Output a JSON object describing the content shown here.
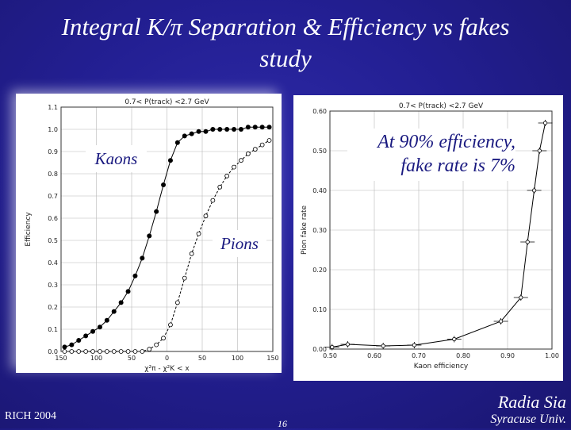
{
  "title": {
    "line1": "Integral  K/π  Separation & Efficiency vs fakes",
    "line2": "study"
  },
  "callouts": {
    "kaons": "Kaons",
    "pions": "Pions",
    "fake_line1": "At 90% efficiency,",
    "fake_line2": "fake rate is 7%"
  },
  "footer": {
    "conference": "RICH 2004",
    "slide_number": "16",
    "author": "Radia Sia",
    "affiliation": "Syracuse Univ."
  },
  "chart_data": [
    {
      "type": "scatter",
      "title": "0.7< P(track) <2.7 GeV",
      "xlabel": "χ²π - χ²K < x",
      "ylabel": "Efficiency",
      "xlim": [
        -150,
        150
      ],
      "ylim": [
        0,
        1.1
      ],
      "x_ticks": [
        -150,
        -100,
        -50,
        0,
        50,
        100,
        150
      ],
      "x_tick_labels": [
        "150",
        "100",
        "50",
        "0",
        "50",
        "100",
        "150"
      ],
      "y_ticks": [
        0,
        0.1,
        0.2,
        0.3,
        0.4,
        0.5,
        0.6,
        0.7,
        0.8,
        0.9,
        1.0,
        1.1
      ],
      "y_tick_labels": [
        "0.0",
        "0.1",
        "0.2",
        "0.3",
        "0.4",
        "0.5",
        "0.6",
        "0.7",
        "0.8",
        "0.9",
        "1.0",
        "1.1"
      ],
      "grid": true,
      "series": [
        {
          "name": "Kaons",
          "marker": "filled-circle",
          "line": "solid",
          "x": [
            -145,
            -135,
            -125,
            -115,
            -105,
            -95,
            -85,
            -75,
            -65,
            -55,
            -45,
            -35,
            -25,
            -15,
            -5,
            5,
            15,
            25,
            35,
            45,
            55,
            65,
            75,
            85,
            95,
            105,
            115,
            125,
            135,
            145
          ],
          "y": [
            0.02,
            0.03,
            0.05,
            0.07,
            0.09,
            0.11,
            0.14,
            0.18,
            0.22,
            0.27,
            0.34,
            0.42,
            0.52,
            0.63,
            0.75,
            0.86,
            0.94,
            0.97,
            0.98,
            0.99,
            0.99,
            1.0,
            1.0,
            1.0,
            1.0,
            1.0,
            1.01,
            1.01,
            1.01,
            1.01
          ]
        },
        {
          "name": "Pions",
          "marker": "open-circle",
          "line": "dashed",
          "x": [
            -145,
            -135,
            -125,
            -115,
            -105,
            -95,
            -85,
            -75,
            -65,
            -55,
            -45,
            -35,
            -25,
            -15,
            -5,
            5,
            15,
            25,
            35,
            45,
            55,
            65,
            75,
            85,
            95,
            105,
            115,
            125,
            135,
            145
          ],
          "y": [
            0.0,
            0.0,
            0.0,
            0.0,
            0.0,
            0.0,
            0.0,
            0.0,
            0.0,
            0.0,
            0.0,
            0.0,
            0.01,
            0.03,
            0.06,
            0.12,
            0.22,
            0.33,
            0.44,
            0.53,
            0.61,
            0.68,
            0.74,
            0.79,
            0.83,
            0.86,
            0.89,
            0.91,
            0.93,
            0.95
          ]
        }
      ]
    },
    {
      "type": "line",
      "title": "0.7< P(track) <2.7 GeV",
      "xlabel": "Kaon efficiency",
      "ylabel": "Pion fake rate",
      "xlim": [
        0.5,
        1.0
      ],
      "ylim": [
        0,
        0.6
      ],
      "x_ticks": [
        0.5,
        0.6,
        0.7,
        0.8,
        0.9,
        1.0
      ],
      "x_tick_labels": [
        "0.50",
        "0.60",
        "0.70",
        "0.80",
        "0.90",
        "1.00"
      ],
      "y_ticks": [
        0,
        0.1,
        0.2,
        0.3,
        0.4,
        0.5,
        0.6
      ],
      "y_tick_labels": [
        "0.00",
        "0.10",
        "0.20",
        "0.30",
        "0.40",
        "0.50",
        "0.60"
      ],
      "grid": true,
      "series": [
        {
          "marker": "open-circle-with-error-cross",
          "x": [
            0.505,
            0.54,
            0.62,
            0.69,
            0.78,
            0.885,
            0.93,
            0.945,
            0.96,
            0.972,
            0.985
          ],
          "y": [
            0.005,
            0.012,
            0.008,
            0.01,
            0.025,
            0.07,
            0.13,
            0.27,
            0.4,
            0.5,
            0.57
          ]
        }
      ]
    }
  ]
}
